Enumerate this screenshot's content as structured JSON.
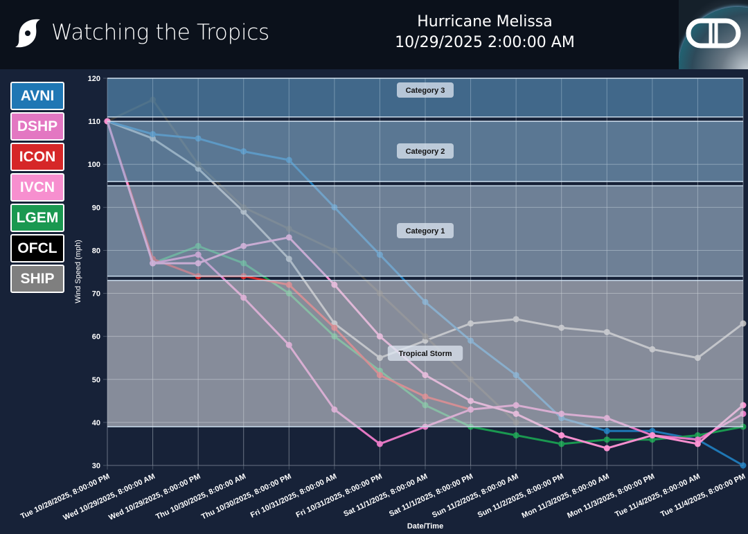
{
  "header": {
    "app_title": "Watching the Tropics",
    "app_icon": "hurricane-icon",
    "storm_name": "Hurricane Melissa",
    "storm_time": "10/29/2025 2:00:00 AM",
    "logo": "DD"
  },
  "legend": [
    {
      "label": "AVNI",
      "color": "#1f77b4"
    },
    {
      "label": "DSHP",
      "color": "#e377c2"
    },
    {
      "label": "ICON",
      "color": "#d62728"
    },
    {
      "label": "IVCN",
      "color": "#f78fcf"
    },
    {
      "label": "LGEM",
      "color": "#1a9850"
    },
    {
      "label": "OFCL",
      "color": "#000000"
    },
    {
      "label": "SHIP",
      "color": "#7f7f7f"
    }
  ],
  "chart_data": {
    "type": "line",
    "xlabel": "Date/Time",
    "ylabel": "Wind Speed (mph)",
    "ylim": [
      30,
      120
    ],
    "yticks": [
      30,
      40,
      50,
      60,
      70,
      80,
      90,
      100,
      110,
      120
    ],
    "grid": true,
    "categories": [
      "Tue 10/28/2025, 8:00:00 PM",
      "Wed 10/29/2025, 8:00:00 AM",
      "Wed 10/29/2025, 8:00:00 PM",
      "Thu 10/30/2025, 8:00:00 AM",
      "Thu 10/30/2025, 8:00:00 PM",
      "Fri 10/31/2025, 8:00:00 AM",
      "Fri 10/31/2025, 8:00:00 PM",
      "Sat 11/1/2025, 8:00:00 AM",
      "Sat 11/1/2025, 8:00:00 PM",
      "Sun 11/2/2025, 8:00:00 AM",
      "Sun 11/2/2025, 8:00:00 PM",
      "Mon 11/3/2025, 8:00:00 AM",
      "Mon 11/3/2025, 8:00:00 PM",
      "Tue 11/4/2025, 8:00:00 AM",
      "Tue 11/4/2025, 8:00:00 PM"
    ],
    "bands": [
      {
        "label": "Category 3",
        "from": 111,
        "to": 120,
        "color": "#5d97c1"
      },
      {
        "label": "Category 2",
        "from": 96,
        "to": 110,
        "color": "#87b1d0"
      },
      {
        "label": "Category 1",
        "from": 74,
        "to": 95,
        "color": "#a8bfd5"
      },
      {
        "label": "Tropical Storm",
        "from": 39,
        "to": 73,
        "color": "#d0d3dc"
      }
    ],
    "series": [
      {
        "name": "SHIP",
        "color": "#b0b0b0",
        "values": [
          110,
          106,
          99,
          89,
          78,
          63,
          55,
          59,
          63,
          64,
          62,
          61,
          57,
          55,
          63
        ]
      },
      {
        "name": "OFCL",
        "color": "#3a3a3a",
        "values": [
          110,
          115,
          100,
          90,
          85,
          80,
          70,
          60,
          50,
          40,
          null,
          null,
          null,
          null,
          null
        ]
      },
      {
        "name": "AVNI",
        "color": "#1f77b4",
        "values": [
          110,
          107,
          106,
          103,
          101,
          90,
          79,
          68,
          59,
          51,
          41,
          38,
          38,
          36,
          30
        ]
      },
      {
        "name": "LGEM",
        "color": "#1a9850",
        "values": [
          110,
          77,
          81,
          77,
          70,
          60,
          52,
          44,
          39,
          37,
          35,
          36,
          36,
          37,
          39
        ]
      },
      {
        "name": "ICON",
        "color": "#d62728",
        "values": [
          110,
          78,
          74,
          74,
          72,
          62,
          51,
          46,
          43,
          null,
          null,
          null,
          null,
          null,
          null
        ]
      },
      {
        "name": "DSHP",
        "color": "#e377c2",
        "values": [
          110,
          77,
          79,
          69,
          58,
          43,
          35,
          39,
          43,
          44,
          42,
          41,
          37,
          36,
          42
        ]
      },
      {
        "name": "IVCN",
        "color": "#f78fcf",
        "values": [
          110,
          77,
          77,
          81,
          83,
          72,
          60,
          51,
          45,
          42,
          37,
          34,
          37,
          35,
          44
        ]
      }
    ]
  }
}
